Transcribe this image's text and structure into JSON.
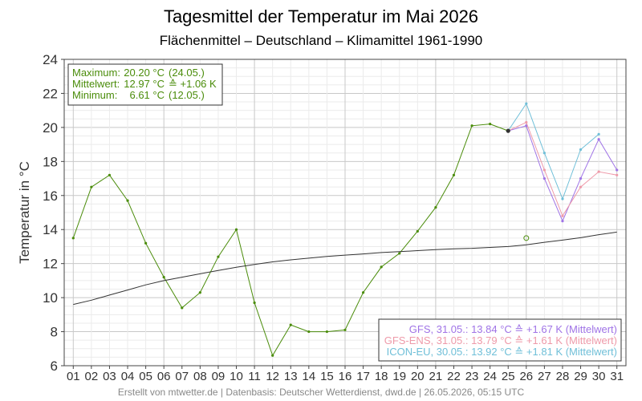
{
  "chart_data": {
    "type": "line",
    "title": "Tagesmittel der Temperatur im Mai 2026",
    "subtitle": "Flächenmittel – Deutschland – Klimamittel 1961-1990",
    "ylabel": "Temperatur in °C",
    "ylim": [
      6,
      24
    ],
    "yticks": [
      6,
      8,
      10,
      12,
      14,
      16,
      18,
      20,
      22,
      24
    ],
    "xlim": [
      0.5,
      31.5
    ],
    "categories": [
      "01",
      "02",
      "03",
      "04",
      "05",
      "06",
      "07",
      "08",
      "09",
      "10",
      "11",
      "12",
      "13",
      "14",
      "15",
      "16",
      "17",
      "18",
      "19",
      "20",
      "21",
      "22",
      "23",
      "24",
      "25",
      "26",
      "27",
      "28",
      "29",
      "30",
      "31"
    ],
    "grid": true,
    "series": [
      {
        "key": "observed",
        "color": "#4a8c0a",
        "x": [
          1,
          2,
          3,
          4,
          5,
          6,
          7,
          8,
          9,
          10,
          11,
          12,
          13,
          14,
          15,
          16,
          17,
          18,
          19,
          20,
          21,
          22,
          23,
          24,
          25
        ],
        "values": [
          13.5,
          16.5,
          17.2,
          15.7,
          13.2,
          11.2,
          9.4,
          10.3,
          12.4,
          14.0,
          9.7,
          6.6,
          8.4,
          8.0,
          8.0,
          8.1,
          10.3,
          11.8,
          12.6,
          13.9,
          15.3,
          17.2,
          20.1,
          20.2,
          19.8
        ]
      },
      {
        "key": "climate",
        "color": "#333333",
        "x": [
          1,
          2,
          3,
          4,
          5,
          6,
          7,
          8,
          9,
          10,
          11,
          12,
          13,
          14,
          15,
          16,
          17,
          18,
          19,
          20,
          21,
          22,
          23,
          24,
          25,
          26,
          27,
          28,
          29,
          30,
          31
        ],
        "values": [
          9.6,
          9.85,
          10.15,
          10.45,
          10.75,
          11.0,
          11.2,
          11.4,
          11.6,
          11.78,
          11.95,
          12.1,
          12.22,
          12.32,
          12.42,
          12.5,
          12.57,
          12.65,
          12.7,
          12.76,
          12.82,
          12.87,
          12.9,
          12.95,
          13.0,
          13.1,
          13.25,
          13.38,
          13.52,
          13.7,
          13.85
        ]
      },
      {
        "key": "gfs",
        "color": "#9f73e6",
        "x": [
          25,
          26,
          27,
          28,
          29,
          30,
          31
        ],
        "values": [
          19.8,
          20.1,
          17.0,
          14.5,
          17.0,
          19.3,
          17.5
        ]
      },
      {
        "key": "gfs_ens",
        "color": "#ee9aa9",
        "x": [
          25,
          26,
          27,
          28,
          29,
          30,
          31
        ],
        "values": [
          19.8,
          20.3,
          17.5,
          14.8,
          16.5,
          17.4,
          17.2
        ]
      },
      {
        "key": "icon_eu",
        "color": "#6fbfd8",
        "x": [
          25,
          26,
          27,
          28,
          29,
          30
        ],
        "values": [
          19.8,
          21.4,
          18.5,
          15.8,
          18.7,
          19.6
        ]
      }
    ],
    "marker_last_observed": {
      "x": 25,
      "y": 19.8,
      "color": "#333333"
    },
    "marker_anomaly_point": {
      "x": 26,
      "y": 13.5,
      "color": "#4a8c0a"
    },
    "stats_box": {
      "line1_label": "Maximum:",
      "line1_value": "20.20 °C",
      "line1_extra": "(24.05.)",
      "line2_label": "Mittelwert:",
      "line2_value": "12.97 °C",
      "line2_extra": "≙ +1.06 K",
      "line3_label": "Minimum:",
      "line3_value": "6.61 °C",
      "line3_extra": "(12.05.)",
      "color": "#4a8c0a"
    },
    "forecast_legend": [
      {
        "text": "GFS, 31.05.: 13.84 °C  ≙ +1.67 K (Mittelwert)",
        "color": "#9f73e6"
      },
      {
        "text": "GFS-ENS, 31.05.: 13.79 °C  ≙ +1.61 K (Mittelwert)",
        "color": "#ee9aa9"
      },
      {
        "text": "ICON-EU, 30.05.: 13.92 °C  ≙ +1.81 K (Mittelwert)",
        "color": "#6fbfd8"
      }
    ],
    "footer": "Erstellt von mtwetter.de | Datenbasis: Deutscher Wetterdienst, dwd.de | 26.05.2026, 05:15 UTC"
  }
}
